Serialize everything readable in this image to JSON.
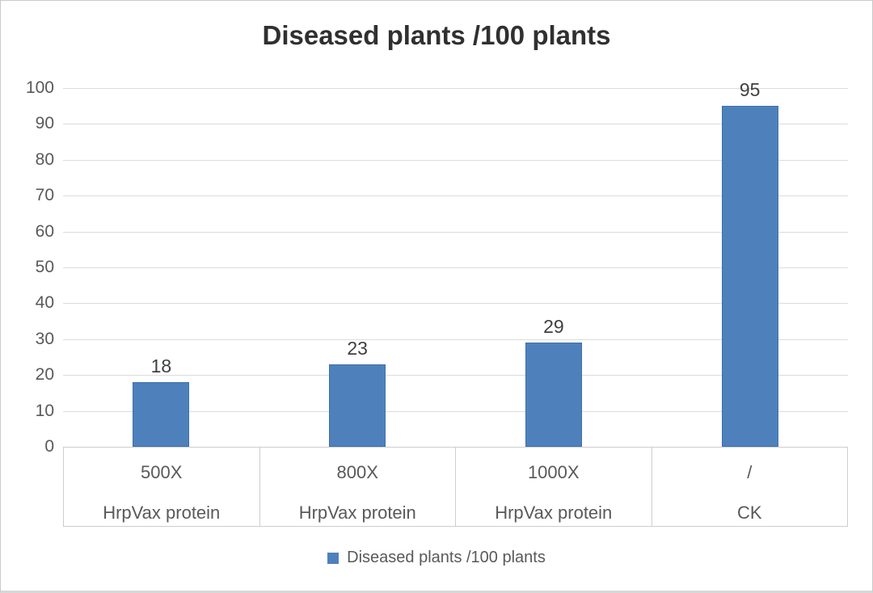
{
  "chart_data": {
    "type": "bar",
    "title": "Diseased plants /100 plants",
    "categories": [
      "500X",
      "800X",
      "1000X",
      "/"
    ],
    "category_sublabels": [
      "HrpVax protein",
      "HrpVax protein",
      "HrpVax protein",
      "CK"
    ],
    "values": [
      18,
      23,
      29,
      95
    ],
    "data_labels": [
      "18",
      "23",
      "29",
      "95"
    ],
    "yticks": [
      "0",
      "10",
      "20",
      "30",
      "40",
      "50",
      "60",
      "70",
      "80",
      "90",
      "100"
    ],
    "ylim": [
      0,
      100
    ],
    "grid": true,
    "legend_position": "bottom",
    "legend_label": "Diseased plants /100 plants",
    "colors": {
      "bar_fill": "#4E81BC",
      "bar_border": "#3E70AC",
      "gridline": "#DCDCDC",
      "table_border": "#CDCDCD",
      "axis_text": "#595959",
      "data_label_text": "#3F3F3F",
      "title_text": "#303030"
    }
  }
}
